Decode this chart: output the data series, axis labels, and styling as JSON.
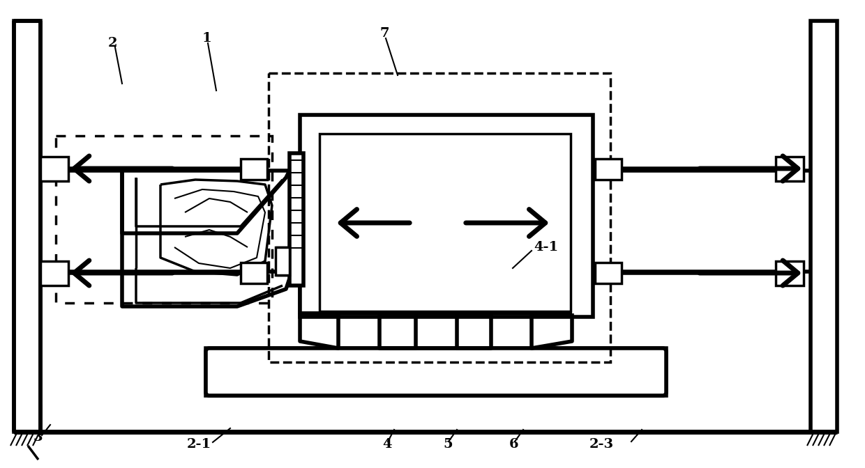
{
  "bg_color": "#ffffff",
  "lc": "#000000",
  "lw_thick": 4.0,
  "lw_med": 2.5,
  "lw_thin": 1.5,
  "fig_w": 12.4,
  "fig_h": 6.72,
  "label_fs": 14,
  "arrow_ms": 20
}
